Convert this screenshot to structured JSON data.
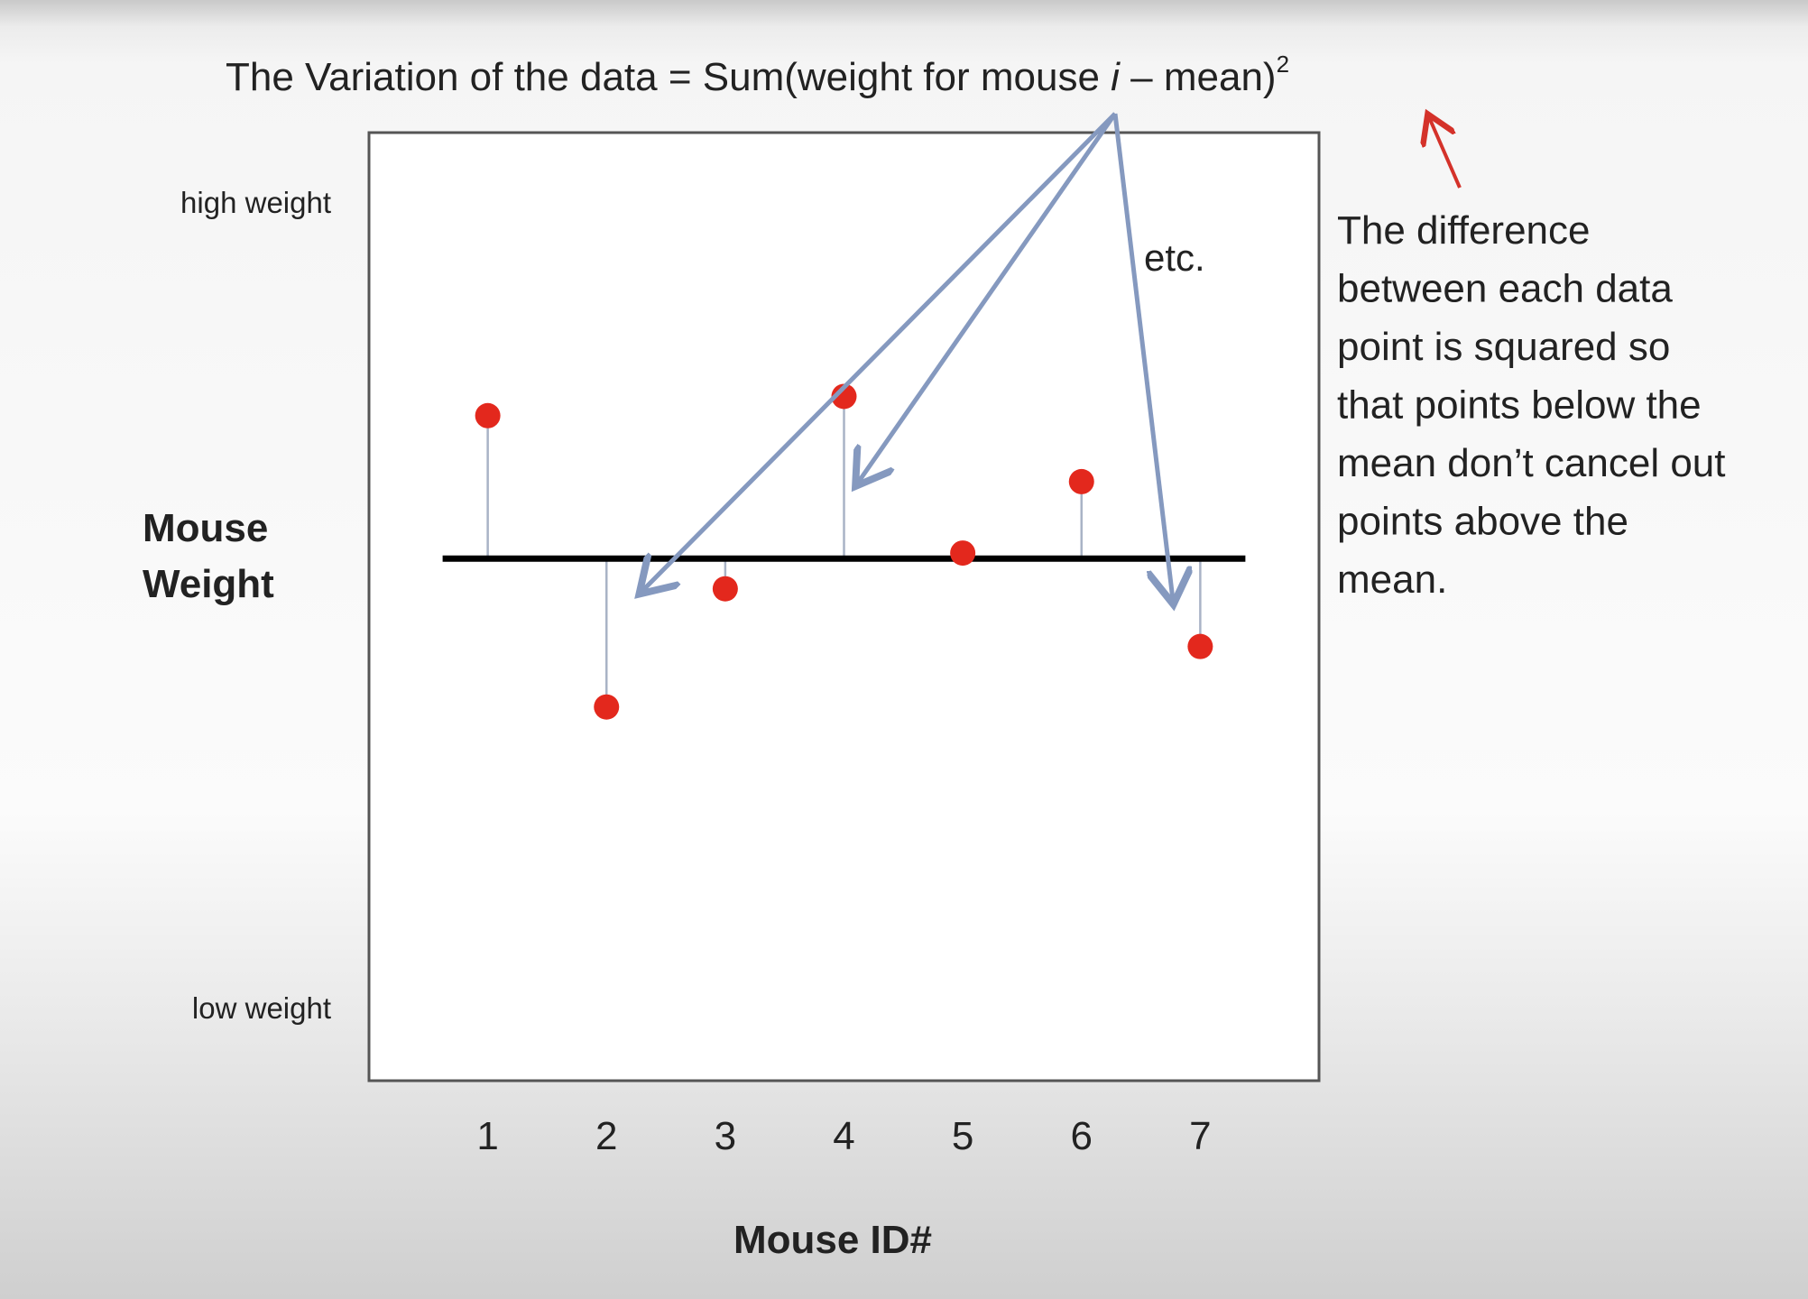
{
  "chart_data": {
    "type": "scatter",
    "title": "The Variation of the data = Sum(weight for mouse i – mean)²",
    "title_parts": {
      "before_i": "The Variation of the data = Sum(weight for mouse ",
      "italic": "i",
      "after_i": " – mean)",
      "superscript": "2"
    },
    "xlabel": "Mouse ID#",
    "ylabel_lines": [
      "Mouse",
      "Weight"
    ],
    "y_high_label": "high weight",
    "y_low_label": "low weight",
    "categories": [
      "1",
      "2",
      "3",
      "4",
      "5",
      "6",
      "7"
    ],
    "x": [
      1,
      2,
      3,
      4,
      5,
      6,
      7
    ],
    "values": [
      0.52,
      -0.54,
      -0.11,
      0.59,
      0.02,
      0.28,
      -0.32
    ],
    "mean": 0,
    "ylim": [
      -1.9,
      1.55
    ],
    "xlim": [
      0.0,
      8.0
    ],
    "point_color": "#e3281d",
    "residual_color": "#a9b3c6",
    "arrow_color": "#8599bf",
    "annotation_color": "#d4322a",
    "annotation_etc": "etc.",
    "side_note_lines": [
      "The difference",
      "between each data",
      "point is squared so",
      "that points below the",
      "mean don’t cancel out",
      "points above the",
      "mean."
    ]
  }
}
